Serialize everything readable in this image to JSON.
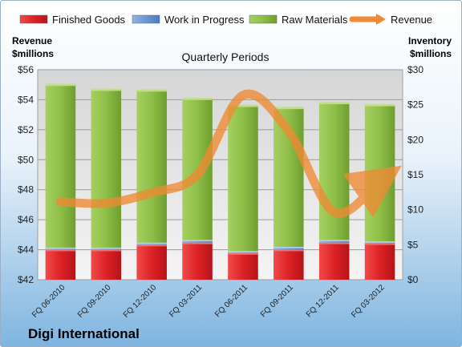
{
  "chart_data": {
    "type": "bar+line",
    "title": "Quarterly Periods",
    "company": "Digi International",
    "categories": [
      "FQ 06-2010",
      "FQ 09-2010",
      "FQ 12-2010",
      "FQ 03-2011",
      "FQ 06-2011",
      "FQ 09-2011",
      "FQ 12-2011",
      "FQ 03-2012"
    ],
    "left_axis": {
      "label_line1": "Revenue",
      "label_line2": "$millions",
      "range": [
        42,
        56
      ],
      "ticks": [
        "$42",
        "$44",
        "$46",
        "$48",
        "$50",
        "$52",
        "$54",
        "$56"
      ]
    },
    "right_axis": {
      "label_line1": "Inventory",
      "label_line2": "$millions",
      "range": [
        0,
        30
      ],
      "ticks": [
        "$0",
        "$5",
        "$10",
        "$15",
        "$20",
        "$25",
        "$30"
      ]
    },
    "series": [
      {
        "name": "Finished Goods",
        "kind": "stacked-bar",
        "axis": "right",
        "color": "#e0202a",
        "values": [
          4.3,
          4.3,
          5.0,
          5.3,
          3.8,
          4.3,
          5.3,
          5.2
        ]
      },
      {
        "name": "Work in Progress",
        "kind": "stacked-bar",
        "axis": "right",
        "color": "#5b8fd0",
        "values": [
          0.3,
          0.3,
          0.3,
          0.4,
          0.3,
          0.4,
          0.4,
          0.3
        ]
      },
      {
        "name": "Raw Materials",
        "kind": "stacked-bar",
        "axis": "right",
        "color": "#86b93e",
        "values": [
          23.3,
          22.6,
          21.8,
          20.2,
          20.8,
          19.9,
          19.6,
          19.5
        ]
      },
      {
        "name": "Revenue",
        "kind": "line",
        "axis": "left",
        "color": "#f08a34",
        "values": [
          47.2,
          47.1,
          47.8,
          49.0,
          54.3,
          51.9,
          46.5,
          48.6
        ]
      }
    ],
    "legend_position": "top",
    "grid": true
  }
}
